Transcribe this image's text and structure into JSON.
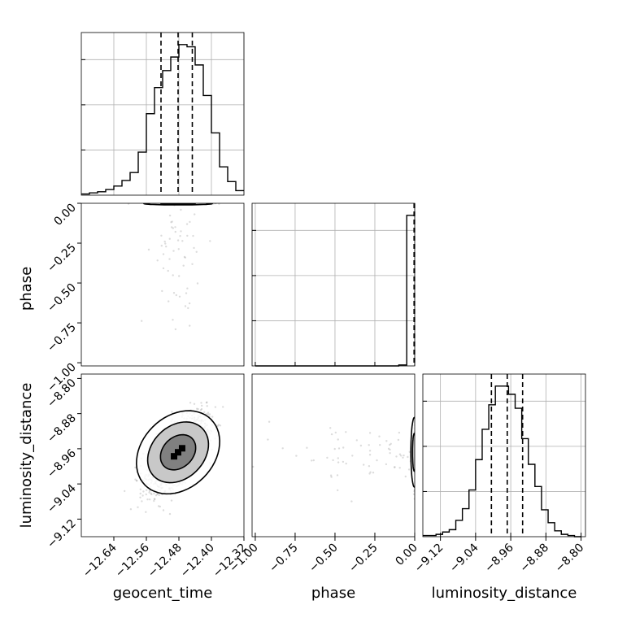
{
  "chart_data": {
    "type": "corner",
    "parameters": [
      "geocent_time",
      "phase",
      "luminosity_distance"
    ],
    "axes": {
      "geocent_time": {
        "ticks": [
          "−12.64",
          "−12.56",
          "−12.48",
          "−12.40",
          "−12.32"
        ]
      },
      "phase": {
        "ticks": [
          "−1.00",
          "−0.75",
          "−0.50",
          "−0.25",
          "0.00"
        ]
      },
      "luminosity_distance": {
        "ticks": [
          "−9.12",
          "−9.04",
          "−8.96",
          "−8.88",
          "−8.80"
        ]
      }
    },
    "marginals": {
      "geocent_time": {
        "bin_edges": [
          -12.72,
          -12.7,
          -12.68,
          -12.66,
          -12.64,
          -12.62,
          -12.6,
          -12.58,
          -12.56,
          -12.54,
          -12.52,
          -12.5,
          -12.48,
          -12.46,
          -12.44,
          -12.42,
          -12.4,
          -12.38,
          -12.36,
          -12.34,
          -12.32
        ],
        "counts": [
          1,
          2,
          3,
          5,
          8,
          13,
          20,
          38,
          72,
          95,
          110,
          122,
          133,
          131,
          115,
          88,
          55,
          25,
          12,
          4
        ],
        "quantiles": [
          -12.524,
          -12.482,
          -12.447
        ]
      },
      "phase": {
        "bin_edges": [
          -1.0,
          -0.95,
          -0.9,
          -0.85,
          -0.8,
          -0.75,
          -0.7,
          -0.65,
          -0.6,
          -0.55,
          -0.5,
          -0.45,
          -0.4,
          -0.35,
          -0.3,
          -0.25,
          -0.2,
          -0.15,
          -0.1,
          -0.05,
          0.0
        ],
        "counts": [
          0,
          0,
          0,
          0,
          0,
          0,
          0,
          0,
          0,
          0,
          0,
          0,
          0,
          0,
          0,
          0,
          0,
          0,
          1,
          160
        ],
        "quantiles": [
          -0.004,
          -0.002,
          -0.001
        ]
      },
      "luminosity_distance": {
        "bin_edges": [
          -9.16,
          -9.145,
          -9.13,
          -9.115,
          -9.1,
          -9.085,
          -9.07,
          -9.055,
          -9.04,
          -9.025,
          -9.01,
          -8.995,
          -8.98,
          -8.965,
          -8.95,
          -8.935,
          -8.92,
          -8.905,
          -8.89,
          -8.875,
          -8.86,
          -8.845,
          -8.83,
          -8.815,
          -8.8
        ],
        "counts": [
          1,
          1,
          2,
          4,
          6,
          14,
          24,
          40,
          66,
          92,
          113,
          129,
          129,
          122,
          110,
          84,
          62,
          43,
          23,
          12,
          5,
          2,
          1,
          0
        ],
        "quantiles": [
          -9.004,
          -8.968,
          -8.933
        ]
      }
    },
    "joint": [
      {
        "x": "geocent_time",
        "y": "phase",
        "mean": [
          -12.482,
          -0.002
        ],
        "sd": [
          0.035,
          0.01
        ],
        "corr": 0,
        "levels": [
          0.39,
          0.86
        ]
      },
      {
        "x": "geocent_time",
        "y": "luminosity_distance",
        "mean": [
          -12.482,
          -8.968
        ],
        "sd": [
          0.035,
          0.04
        ],
        "corr": 0.62,
        "levels": [
          0.39,
          0.86,
          0.99
        ]
      },
      {
        "x": "phase",
        "y": "luminosity_distance",
        "mean": [
          -0.002,
          -8.968
        ],
        "sd": [
          0.01,
          0.04
        ],
        "corr": 0,
        "levels": [
          0.39,
          0.86
        ]
      }
    ],
    "grid": true,
    "line_color": "#000000",
    "contour_fill": "#000000"
  }
}
